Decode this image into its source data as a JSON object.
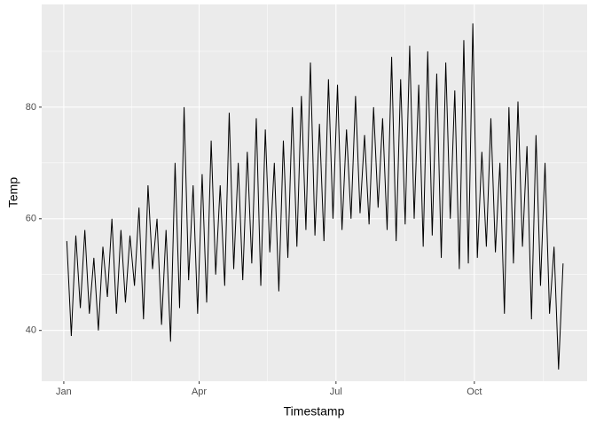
{
  "chart_data": {
    "type": "line",
    "x_label": "Timestamp",
    "y_label": "Temp",
    "x": [
      2,
      5,
      8,
      11,
      14,
      17,
      20,
      23,
      26,
      29,
      32,
      35,
      38,
      41,
      44,
      47,
      50,
      53,
      56,
      59,
      62,
      65,
      68,
      71,
      74,
      77,
      80,
      83,
      86,
      89,
      92,
      95,
      98,
      101,
      104,
      107,
      110,
      113,
      116,
      119,
      122,
      125,
      128,
      131,
      134,
      137,
      140,
      143,
      146,
      149,
      152,
      155,
      158,
      161,
      164,
      167,
      170,
      173,
      176,
      179,
      182,
      185,
      188,
      191,
      194,
      197,
      200,
      203,
      206,
      209,
      212,
      215,
      218,
      221,
      224,
      227,
      230,
      233,
      236,
      239,
      242,
      245,
      248,
      251,
      254,
      257,
      260,
      263,
      266,
      269,
      272,
      275,
      278,
      281,
      284,
      287,
      290,
      293,
      296,
      299,
      302,
      305,
      308,
      311,
      314,
      317,
      320,
      323,
      326,
      329,
      332
    ],
    "values": [
      56,
      39,
      57,
      44,
      58,
      43,
      53,
      40,
      55,
      46,
      60,
      43,
      58,
      45,
      57,
      48,
      62,
      42,
      66,
      51,
      60,
      41,
      58,
      38,
      70,
      44,
      80,
      49,
      66,
      43,
      68,
      45,
      74,
      50,
      66,
      48,
      79,
      51,
      70,
      49,
      72,
      52,
      78,
      48,
      76,
      54,
      70,
      47,
      74,
      53,
      80,
      55,
      82,
      58,
      88,
      57,
      77,
      56,
      85,
      60,
      84,
      58,
      76,
      60,
      82,
      61,
      75,
      59,
      80,
      62,
      78,
      58,
      89,
      56,
      85,
      59,
      91,
      60,
      84,
      55,
      90,
      57,
      86,
      53,
      88,
      60,
      83,
      51,
      92,
      52,
      95,
      53,
      72,
      55,
      78,
      54,
      70,
      43,
      80,
      52,
      81,
      55,
      73,
      42,
      75,
      48,
      70,
      43,
      55,
      33,
      52
    ],
    "color": "#000000",
    "xlim": [
      -14.7,
      348
    ],
    "xticks": [
      {
        "value": 0,
        "label": "Jan"
      },
      {
        "value": 90,
        "label": "Apr"
      },
      {
        "value": 181,
        "label": "Jul"
      },
      {
        "value": 273,
        "label": "Oct"
      }
    ],
    "ylim": [
      30.9,
      98.4
    ],
    "yticks": [
      40,
      60,
      80
    ],
    "grid": true
  }
}
